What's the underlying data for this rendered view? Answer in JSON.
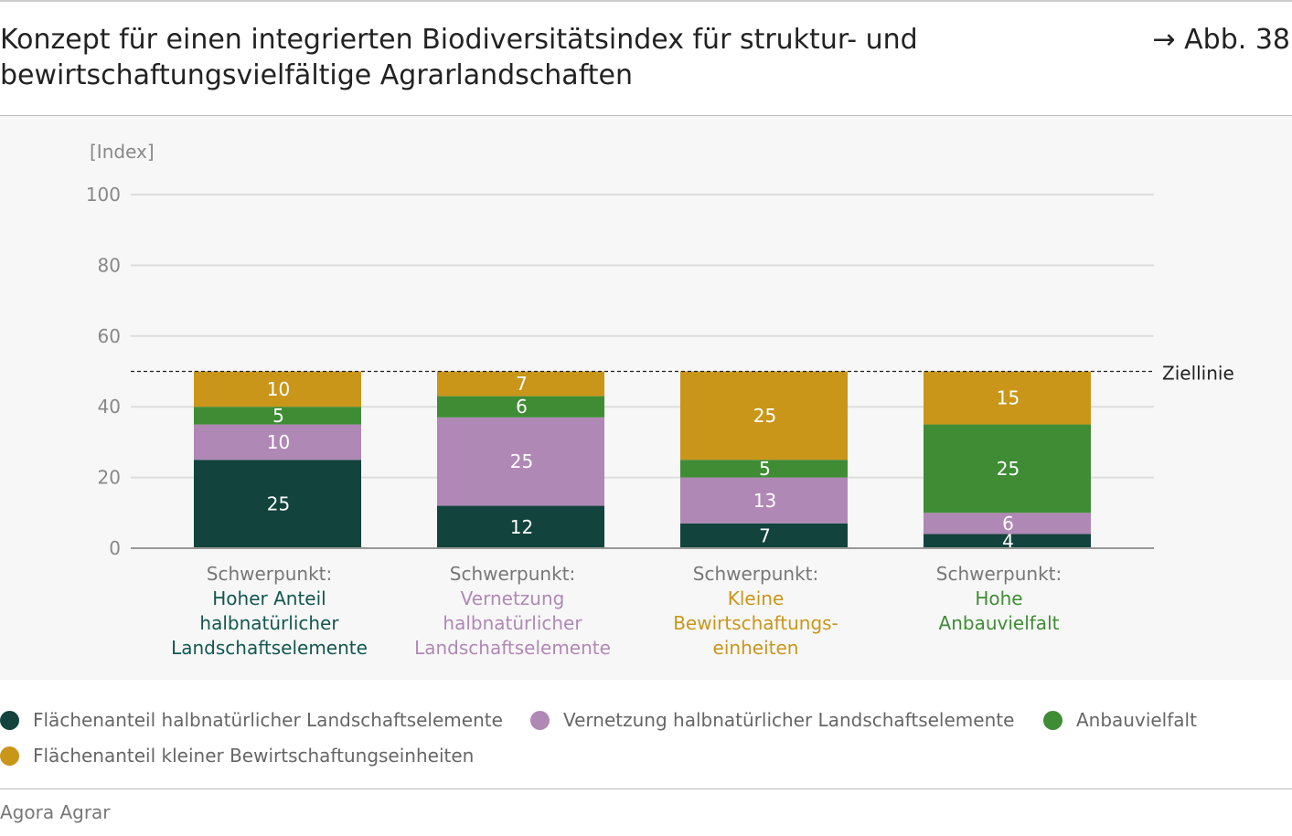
{
  "header": {
    "title": "Konzept für einen integrierten Biodiversitätsindex für struktur- und bewirtschaftungsvielfältige Agrarlandschaften",
    "figure_ref": "→ Abb. 38"
  },
  "chart_data": {
    "type": "bar",
    "stacked": true,
    "ylabel": "[Index]",
    "ylim": [
      0,
      100
    ],
    "yticks": [
      0,
      20,
      40,
      60,
      80,
      100
    ],
    "grid": true,
    "target_line": {
      "value": 50,
      "label": "Ziellinie"
    },
    "categories": [
      {
        "prefix": "Schwerpunkt:",
        "lines": [
          "Hoher Anteil",
          "halbnatürlicher",
          "Landschaftselemente"
        ],
        "color": "#12574f"
      },
      {
        "prefix": "Schwerpunkt:",
        "lines": [
          "Vernetzung",
          "halbnatürlicher",
          "Landschaftselemente"
        ],
        "color": "#b088b5"
      },
      {
        "prefix": "Schwerpunkt:",
        "lines": [
          "Kleine",
          "Bewirtschaftungs-",
          "einheiten"
        ],
        "color": "#c9961a"
      },
      {
        "prefix": "Schwerpunkt:",
        "lines": [
          "Hohe",
          "Anbauvielfalt"
        ],
        "color": "#3f8c35"
      }
    ],
    "series": [
      {
        "name": "Flächenanteil halbnatürlicher Landschaftselemente",
        "color": "#12433d",
        "values": [
          25,
          12,
          7,
          4
        ]
      },
      {
        "name": "Vernetzung halbnatürlicher Landschaftselemente",
        "color": "#b088b5",
        "values": [
          10,
          25,
          13,
          6
        ]
      },
      {
        "name": "Anbauvielfalt",
        "color": "#3f8c35",
        "values": [
          5,
          6,
          5,
          25
        ]
      },
      {
        "name": "Flächenanteil kleiner Bewirtschaftungseinheiten",
        "color": "#c9961a",
        "values": [
          10,
          7,
          25,
          15
        ]
      }
    ],
    "legend_position": "bottom"
  },
  "footer": {
    "source": "Agora Agrar"
  }
}
